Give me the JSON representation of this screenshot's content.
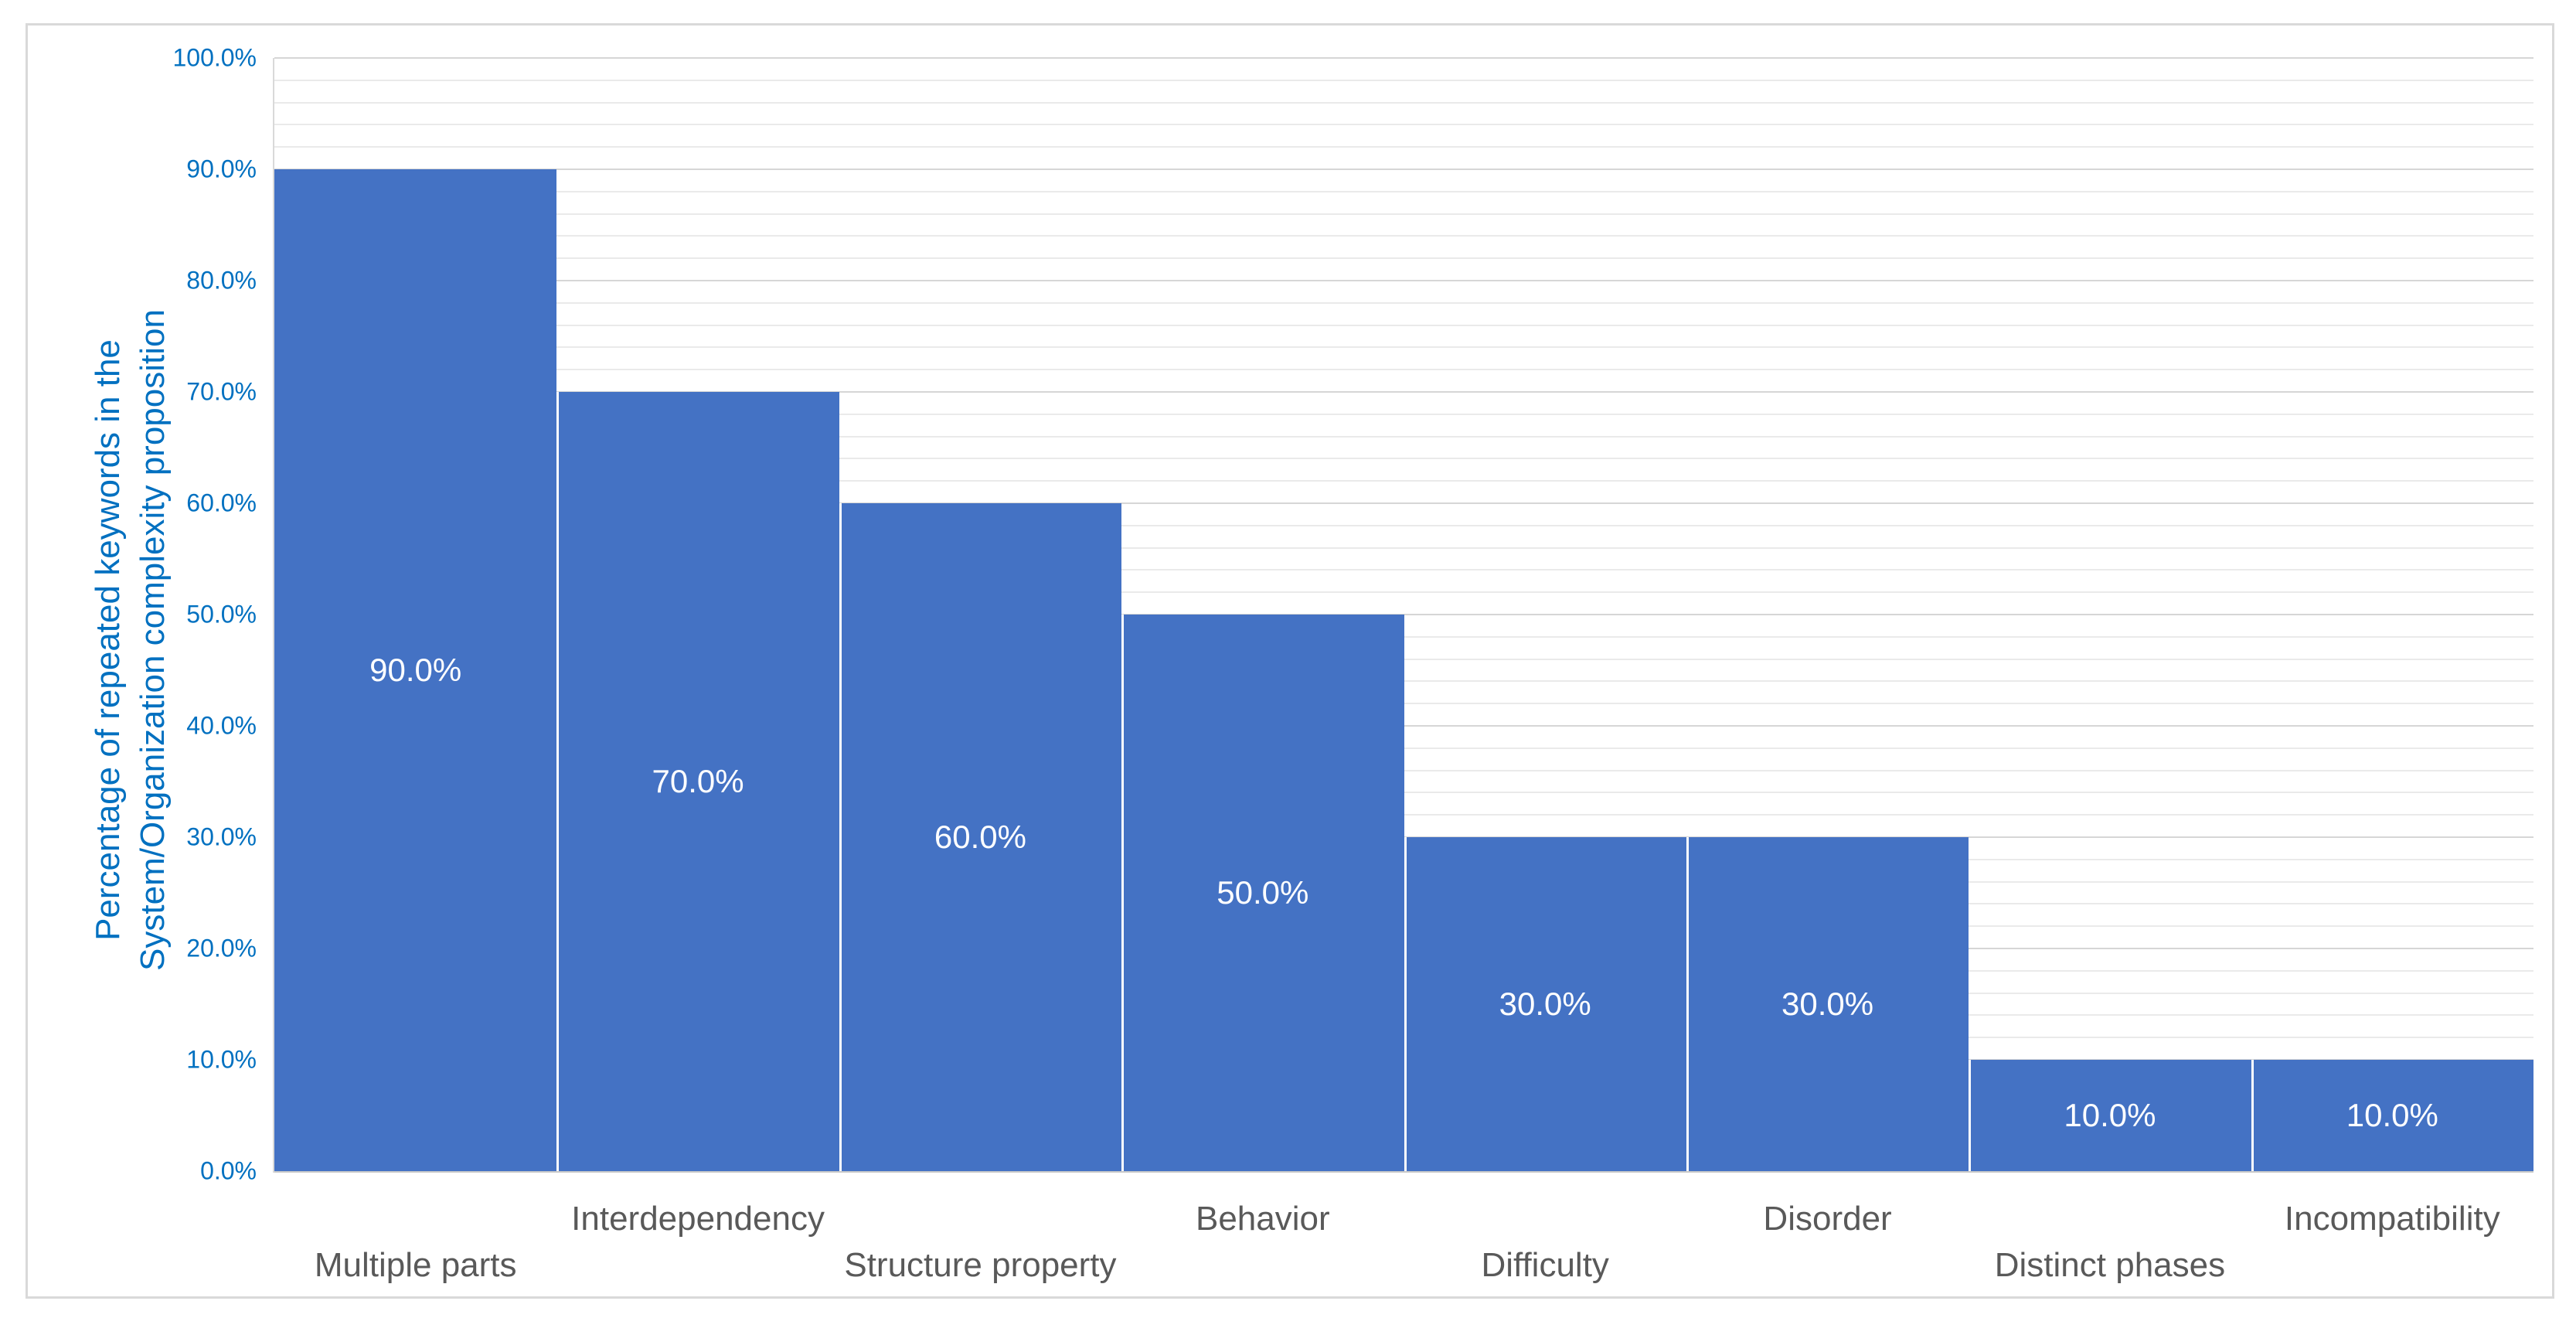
{
  "chart_data": {
    "type": "bar",
    "title": "",
    "categories": [
      "Multiple parts",
      "Interdependency",
      "Structure property",
      "Behavior",
      "Difficulty",
      "Disorder",
      "Distinct phases",
      "Incompatibility"
    ],
    "values": [
      90,
      70,
      60,
      50,
      30,
      30,
      10,
      10
    ],
    "value_labels": [
      "90.0%",
      "70.0%",
      "60.0%",
      "50.0%",
      "30.0%",
      "30.0%",
      "10.0%",
      "10.0%"
    ],
    "category_label_rows": [
      "lower",
      "upper",
      "lower",
      "upper",
      "lower",
      "upper",
      "lower",
      "upper"
    ],
    "xlabel": "",
    "ylabel_line1": "Percentage of repeated keywords in the",
    "ylabel_line2": "System/Organization complexity proposition",
    "y_ticks": [
      "0.0%",
      "10.0%",
      "20.0%",
      "30.0%",
      "40.0%",
      "50.0%",
      "60.0%",
      "70.0%",
      "80.0%",
      "90.0%",
      "100.0%"
    ],
    "ylim": [
      0,
      100
    ],
    "y_major_step": 10,
    "y_minor_step": 2,
    "grid": "on",
    "legend": "none",
    "bar_gap": "none-with-white-separator",
    "colors": {
      "bar_fill": "#4472C4",
      "axis_text": "#0070C0",
      "category_text": "#595959",
      "data_label_text": "#FFFFFF",
      "major_gridline": "#D6D6D6",
      "minor_gridline": "#EAEAEA",
      "axis_line": "#C9C9C9",
      "chart_border": "#D9D9D9",
      "background": "#FFFFFF"
    }
  }
}
